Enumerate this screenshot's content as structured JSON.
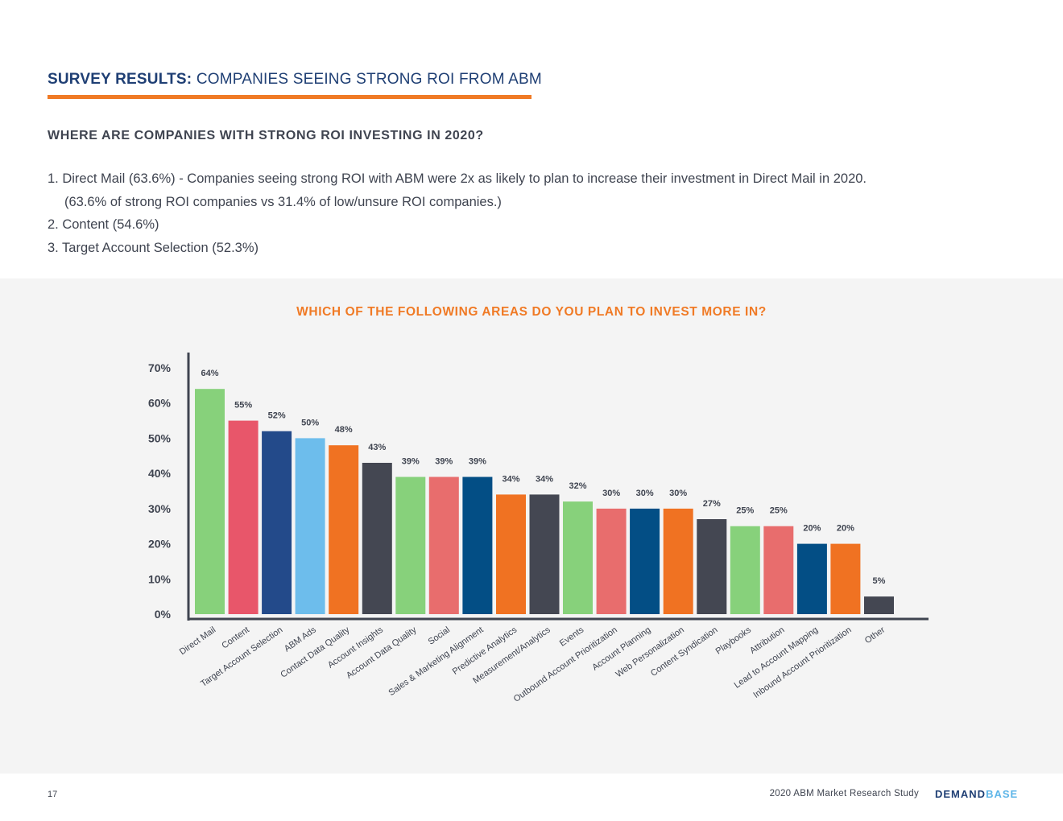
{
  "header": {
    "title_strong": "SURVEY RESULTS:",
    "title_rest": "COMPANIES SEEING STRONG ROI FROM ABM"
  },
  "question": "WHERE ARE COMPANIES WITH STRONG ROI INVESTING IN 2020?",
  "list": {
    "item1": "1.  Direct Mail (63.6%) - Companies seeing strong ROI with ABM were 2x as likely to plan to increase their investment in Direct Mail in 2020.",
    "item1_detail": "(63.6% of strong ROI companies vs 31.4% of low/unsure ROI companies.)",
    "item2": "2. Content (54.6%)",
    "item3": "3. Target Account Selection (52.3%)"
  },
  "chart_data": {
    "type": "bar",
    "title": "WHICH OF THE FOLLOWING AREAS DO YOU PLAN TO INVEST MORE IN?",
    "xlabel": "",
    "ylabel": "",
    "ylim": [
      0,
      70
    ],
    "yticks": [
      "0%",
      "10%",
      "20%",
      "30%",
      "40%",
      "50%",
      "60%",
      "70%"
    ],
    "grid": false,
    "categories": [
      "Direct Mail",
      "Content",
      "Target Account Selection",
      "ABM Ads",
      "Contact Data Quality",
      "Account Insights",
      "Account Data Quality",
      "Social",
      "Sales & Marketing Alignment",
      "Predictive Analytics",
      "Measurement/Analytics",
      "Events",
      "Outbound Account Prioritization",
      "Account Planning",
      "Web Personalization",
      "Content Syndication",
      "Playbooks",
      "Attribution",
      "Lead to Account Mapping",
      "Inbound Account Prioritization",
      "Other"
    ],
    "values": [
      64,
      55,
      52,
      50,
      48,
      43,
      39,
      39,
      39,
      34,
      34,
      32,
      30,
      30,
      30,
      27,
      25,
      25,
      20,
      20,
      5
    ],
    "labels": [
      "64%",
      "55%",
      "52%",
      "50%",
      "48%",
      "43%",
      "39%",
      "39%",
      "39%",
      "34%",
      "34%",
      "32%",
      "30%",
      "30%",
      "30%",
      "27%",
      "25%",
      "25%",
      "20%",
      "20%",
      "5%"
    ],
    "colors": [
      "#87d17b",
      "#e8566a",
      "#234a8a",
      "#6dbdec",
      "#f07222",
      "#444752",
      "#87d17b",
      "#e86d6d",
      "#034e85",
      "#f07222",
      "#444752",
      "#87d17b",
      "#e86d6d",
      "#034e85",
      "#f07222",
      "#444752",
      "#87d17b",
      "#e86d6d",
      "#034e85",
      "#f07222",
      "#444752"
    ]
  },
  "footer": {
    "page_number": "17",
    "study": "2020 ABM Market Research Study",
    "logo_dark": "DEMAND",
    "logo_light": "BASE"
  }
}
